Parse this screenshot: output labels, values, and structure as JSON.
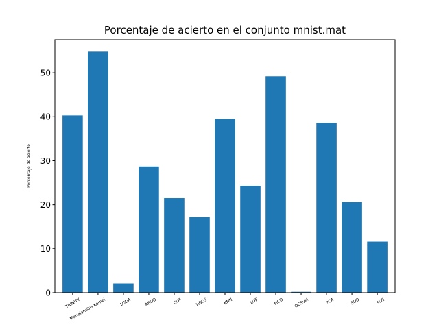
{
  "chart_data": {
    "type": "bar",
    "title": "Porcentaje de acierto en el conjunto mnist.mat",
    "xlabel": "",
    "ylabel": "Porcentaje de acierto",
    "categories": [
      "TRINITY",
      "Mahalanobis Kernel",
      "LODA",
      "ABOD",
      "COF",
      "HBOS",
      "KNN",
      "LOF",
      "MCD",
      "OCSVM",
      "PCA",
      "SOD",
      "SOS"
    ],
    "values": [
      40.3,
      54.8,
      2.1,
      28.7,
      21.5,
      17.2,
      39.5,
      24.3,
      49.2,
      0.2,
      38.6,
      20.6,
      11.6
    ],
    "ylim": [
      0,
      57.5
    ],
    "yticks": [
      0,
      10,
      20,
      30,
      40,
      50
    ],
    "bar_color": "#1f77b4",
    "grid": false,
    "legend": null
  }
}
